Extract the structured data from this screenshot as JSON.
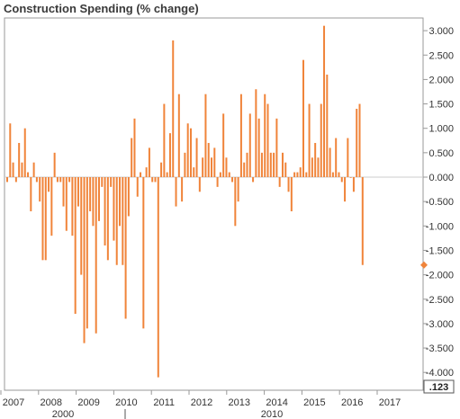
{
  "title": "Construction Spending (% change)",
  "badge_text": ".123",
  "colors": {
    "bar": "#f0843a",
    "marker": "#f0843a",
    "axis": "#999999",
    "text": "#333333"
  },
  "chart_data": {
    "type": "bar",
    "title": "Construction Spending (% change)",
    "xlabel": "",
    "ylabel": "",
    "ylim": [
      -4.25,
      3.25
    ],
    "y_axis_position": "right",
    "yticks": [
      "3.000",
      "2.500",
      "2.000",
      "1.500",
      "1.000",
      "0.500",
      "0.000",
      "-0.500",
      "-1.000",
      "-1.500",
      "-2.000",
      "-2.500",
      "-3.000",
      "-3.500",
      "-4.000"
    ],
    "x_tick_labels": [
      "2007",
      "2008",
      "2009",
      "2010",
      "2011",
      "2012",
      "2013",
      "2014",
      "2015",
      "2016",
      "2017"
    ],
    "x_secondary_labels": [
      "2000",
      "2010"
    ],
    "last_value_marker": -1.8,
    "grid": false,
    "legend": "none",
    "values": [
      -0.1,
      1.1,
      0.3,
      -0.1,
      0.7,
      0.3,
      1.0,
      0.1,
      -0.7,
      0.3,
      -0.1,
      -0.5,
      -1.7,
      -1.7,
      -0.3,
      -1.2,
      0.5,
      -0.1,
      -0.1,
      -0.6,
      -1.1,
      -0.1,
      -1.2,
      -2.8,
      -0.6,
      -2.0,
      -3.4,
      -3.1,
      -0.7,
      -1.0,
      -3.2,
      -0.9,
      -0.2,
      -1.4,
      -1.7,
      -0.2,
      -1.3,
      -1.8,
      -1.0,
      -1.8,
      -2.9,
      -0.8,
      0.8,
      1.2,
      -0.4,
      0.1,
      -3.1,
      0.2,
      0.6,
      -0.1,
      -0.1,
      -4.1,
      0.3,
      1.5,
      0.1,
      0.9,
      2.8,
      -0.6,
      1.7,
      -0.5,
      0.5,
      1.1,
      1.0,
      0.2,
      0.8,
      -0.3,
      0.4,
      1.7,
      0.7,
      0.4,
      0.6,
      -0.2,
      0.1,
      1.3,
      0.4,
      0.1,
      -0.1,
      -1.0,
      -0.5,
      1.7,
      0.3,
      0.5,
      1.3,
      -0.1,
      1.8,
      1.2,
      0.5,
      1.7,
      1.5,
      0.5,
      0.5,
      1.2,
      -0.2,
      0.5,
      0.3,
      -0.3,
      -0.7,
      0.1,
      0.1,
      0.2,
      2.4,
      0.1,
      1.5,
      0.4,
      0.7,
      0.4,
      1.5,
      3.1,
      2.1,
      0.6,
      0.1,
      0.8,
      0.1,
      -0.1,
      -0.5,
      0.8,
      0.0,
      -0.3,
      1.4,
      1.5,
      -1.8
    ]
  }
}
